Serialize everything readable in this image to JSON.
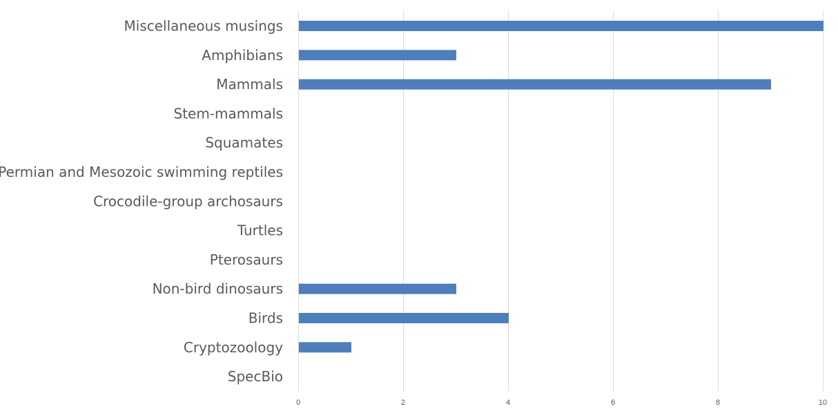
{
  "chart_data": {
    "type": "bar",
    "orientation": "horizontal",
    "categories": [
      "Miscellaneous musings",
      "Amphibians",
      "Mammals",
      "Stem-mammals",
      "Squamates",
      "Permian and Mesozoic swimming reptiles",
      "Crocodile-group archosaurs",
      "Turtles",
      "Pterosaurs",
      "Non-bird dinosaurs",
      "Birds",
      "Cryptozoology",
      "SpecBio"
    ],
    "values": [
      10,
      3,
      9,
      0,
      0,
      0,
      0,
      0,
      0,
      3,
      4,
      1,
      0
    ],
    "xlim": [
      0,
      10
    ],
    "x_ticks": [
      "0",
      "2",
      "4",
      "6",
      "8",
      "10"
    ],
    "grid": true,
    "legend": "none",
    "title": "",
    "xlabel": "",
    "ylabel": "",
    "bar_color": "#4e7fbb",
    "grid_color": "#d9d9d9",
    "label_color": "#595959"
  }
}
